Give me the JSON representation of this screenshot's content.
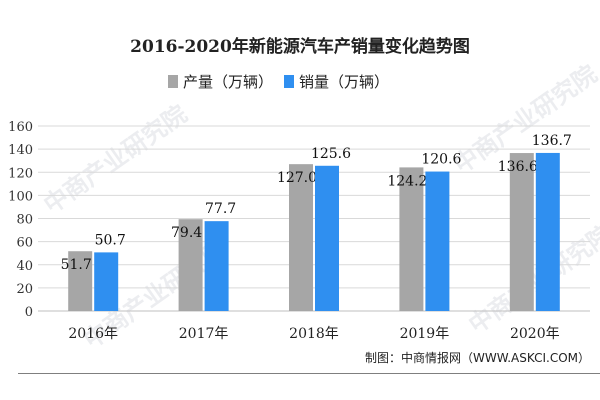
{
  "watermark_text": "中商产业研究院",
  "source_text": "制图：中商情报网（WWW.ASKCI.COM）",
  "chart_data": {
    "type": "bar",
    "title": "2016-2020年新能源汽车产销量变化趋势图",
    "xlabel": "",
    "ylabel": "",
    "categories": [
      "2016年",
      "2017年",
      "2018年",
      "2019年",
      "2020年"
    ],
    "series": [
      {
        "name": "产量（万辆）",
        "values": [
          51.7,
          79.4,
          127.0,
          124.2,
          136.6
        ],
        "color": "#a6a6a6"
      },
      {
        "name": "销量（万辆）",
        "values": [
          50.7,
          77.7,
          125.6,
          120.6,
          136.7
        ],
        "color": "#2f8ff0"
      }
    ],
    "ylim": [
      0,
      160
    ],
    "yticks": [
      0,
      20,
      40,
      60,
      80,
      100,
      120,
      140,
      160
    ],
    "grid": true,
    "legend": "top-center"
  }
}
